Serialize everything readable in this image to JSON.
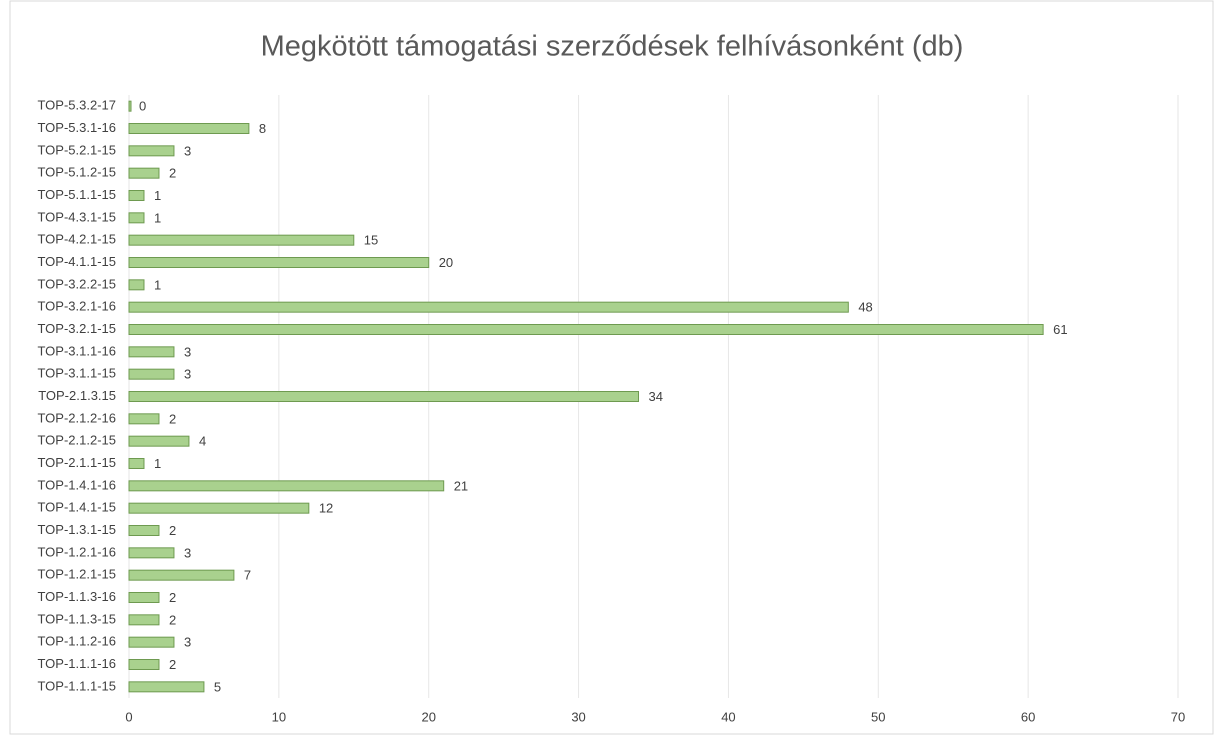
{
  "chart_data": {
    "type": "bar",
    "title": "Megkötött támogatási szerződések felhívásonként (db)",
    "categories": [
      "TOP-5.3.2-17",
      "TOP-5.3.1-16",
      "TOP-5.2.1-15",
      "TOP-5.1.2-15",
      "TOP-5.1.1-15",
      "TOP-4.3.1-15",
      "TOP-4.2.1-15",
      "TOP-4.1.1-15",
      "TOP-3.2.2-15",
      "TOP-3.2.1-16",
      "TOP-3.2.1-15",
      "TOP-3.1.1-16",
      "TOP-3.1.1-15",
      "TOP-2.1.3.15",
      "TOP-2.1.2-16",
      "TOP-2.1.2-15",
      "TOP-2.1.1-15",
      "TOP-1.4.1-16",
      "TOP-1.4.1-15",
      "TOP-1.3.1-15",
      "TOP-1.2.1-16",
      "TOP-1.2.1-15",
      "TOP-1.1.3-16",
      "TOP-1.1.3-15",
      "TOP-1.1.2-16",
      "TOP-1.1.1-16",
      "TOP-1.1.1-15"
    ],
    "values": [
      0,
      8,
      3,
      2,
      1,
      1,
      15,
      20,
      1,
      48,
      61,
      3,
      3,
      34,
      2,
      4,
      1,
      21,
      12,
      2,
      3,
      7,
      2,
      2,
      3,
      2,
      5
    ],
    "color": "#a9d18e",
    "xlim": [
      0,
      70
    ],
    "xticks": [
      0,
      10,
      20,
      30,
      40,
      50,
      60,
      70
    ],
    "grid": true
  }
}
